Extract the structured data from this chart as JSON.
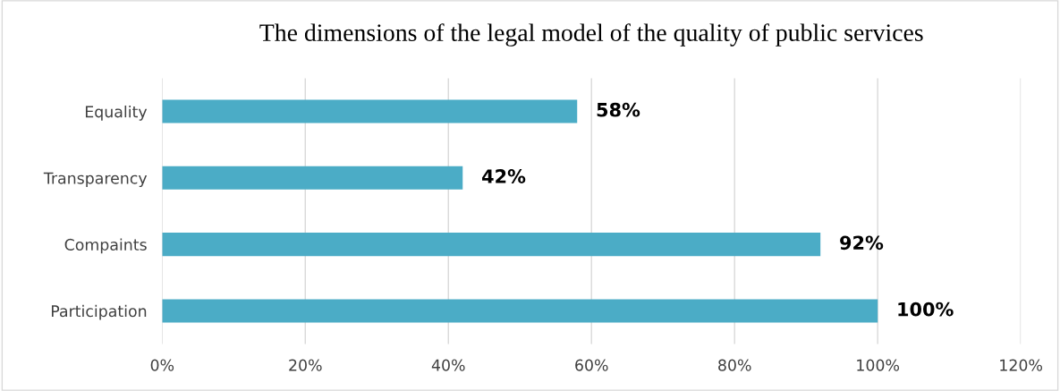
{
  "chart_data": {
    "type": "bar",
    "orientation": "horizontal",
    "title": "The dimensions of the legal model of the quality of public services",
    "categories": [
      "Equality",
      "Transparency",
      "Compaints",
      "Participation"
    ],
    "values": [
      58,
      42,
      92,
      100
    ],
    "value_labels": [
      "58%",
      "42%",
      "92%",
      "100%"
    ],
    "color": "#4bacc6",
    "xlim": [
      0,
      120
    ],
    "xticks": [
      {
        "value": 0,
        "label": "0%"
      },
      {
        "value": 20,
        "label": "20%"
      },
      {
        "value": 40,
        "label": "40%"
      },
      {
        "value": 60,
        "label": "60%"
      },
      {
        "value": 80,
        "label": "80%"
      },
      {
        "value": 100,
        "label": "100%"
      },
      {
        "value": 120,
        "label": "120%"
      }
    ],
    "grid": "x",
    "legend": false
  }
}
